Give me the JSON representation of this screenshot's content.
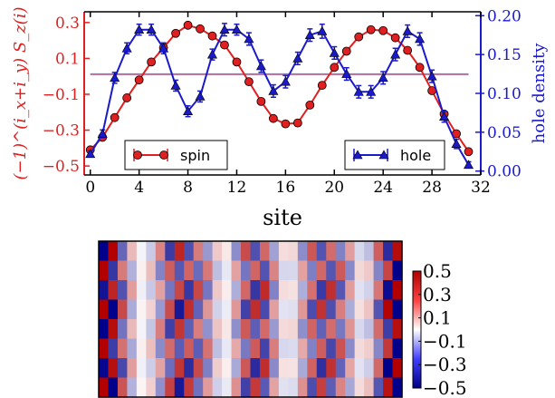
{
  "chart_data": [
    {
      "type": "line",
      "xlabel": "site",
      "ylabel_left": "(−1)^(i_x+i_y) S_z(i)",
      "ylabel_right": "hole density",
      "xlim": [
        -0.5,
        32
      ],
      "ylim_left": [
        -0.55,
        0.36
      ],
      "ylim_right": [
        -0.005,
        0.205
      ],
      "x_ticks": [
        0,
        4,
        8,
        12,
        16,
        20,
        24,
        28,
        32
      ],
      "y_ticks_left": [
        "0.3",
        "0.1",
        "−0.1",
        "−0.3",
        "−0.5"
      ],
      "y_ticks_left_values": [
        0.3,
        0.1,
        -0.1,
        -0.3,
        -0.5
      ],
      "y_ticks_right": [
        "0.20",
        "0.15",
        "0.10",
        "0.05",
        "0.00"
      ],
      "y_ticks_right_values": [
        0.2,
        0.15,
        0.1,
        0.05,
        0.0
      ],
      "colors": {
        "spin": "#e02020",
        "hole": "#1a1acc"
      },
      "legend": [
        {
          "label": "spin",
          "placement": "lower-left"
        },
        {
          "label": "hole",
          "placement": "lower-right"
        }
      ],
      "hlines": [
        {
          "axis": "left",
          "y": 0.01,
          "color": "#f08080"
        },
        {
          "axis": "right",
          "y": 0.125,
          "color": "#7a7ae0"
        }
      ],
      "series": [
        {
          "name": "spin",
          "axis": "left",
          "marker": "circle",
          "x": [
            0,
            1,
            2,
            3,
            4,
            5,
            6,
            7,
            8,
            9,
            10,
            11,
            12,
            13,
            14,
            15,
            16,
            17,
            18,
            19,
            20,
            21,
            22,
            23,
            24,
            25,
            26,
            27,
            28,
            29,
            30,
            31
          ],
          "values": [
            -0.41,
            -0.34,
            -0.23,
            -0.12,
            -0.02,
            0.08,
            0.16,
            0.24,
            0.285,
            0.265,
            0.225,
            0.175,
            0.08,
            -0.03,
            -0.14,
            -0.235,
            -0.265,
            -0.26,
            -0.16,
            -0.05,
            0.05,
            0.14,
            0.22,
            0.26,
            0.255,
            0.215,
            0.145,
            0.05,
            -0.08,
            -0.21,
            -0.32,
            -0.42
          ]
        },
        {
          "name": "hole",
          "axis": "right",
          "marker": "triangle",
          "x": [
            0,
            1,
            2,
            3,
            4,
            5,
            6,
            7,
            8,
            9,
            10,
            11,
            12,
            13,
            14,
            15,
            16,
            17,
            18,
            19,
            20,
            21,
            22,
            23,
            24,
            25,
            26,
            27,
            28,
            29,
            30,
            31
          ],
          "values": [
            0.022,
            0.048,
            0.12,
            0.158,
            0.182,
            0.182,
            0.158,
            0.11,
            0.077,
            0.096,
            0.15,
            0.182,
            0.182,
            0.17,
            0.135,
            0.103,
            0.115,
            0.145,
            0.175,
            0.18,
            0.152,
            0.125,
            0.102,
            0.102,
            0.12,
            0.15,
            0.18,
            0.17,
            0.122,
            0.07,
            0.035,
            0.008
          ],
          "errors": [
            0.004,
            0.005,
            0.007,
            0.007,
            0.007,
            0.007,
            0.007,
            0.007,
            0.007,
            0.007,
            0.007,
            0.008,
            0.007,
            0.008,
            0.008,
            0.008,
            0.008,
            0.008,
            0.008,
            0.009,
            0.008,
            0.008,
            0.008,
            0.008,
            0.008,
            0.008,
            0.008,
            0.008,
            0.008,
            0.007,
            0.006,
            0.004
          ]
        }
      ]
    },
    {
      "type": "heatmap",
      "rows": 8,
      "cols": 32,
      "colormap": [
        "#00008b",
        "#ffffff",
        "#b20000"
      ],
      "vmin": -0.5,
      "vmax": 0.5,
      "colorbar_ticks": [
        "0.5",
        "0.3",
        "0.1",
        "−0.1",
        "−0.3",
        "−0.5"
      ],
      "colorbar_tick_values": [
        0.5,
        0.3,
        0.1,
        -0.1,
        -0.3,
        -0.5
      ]
    }
  ]
}
